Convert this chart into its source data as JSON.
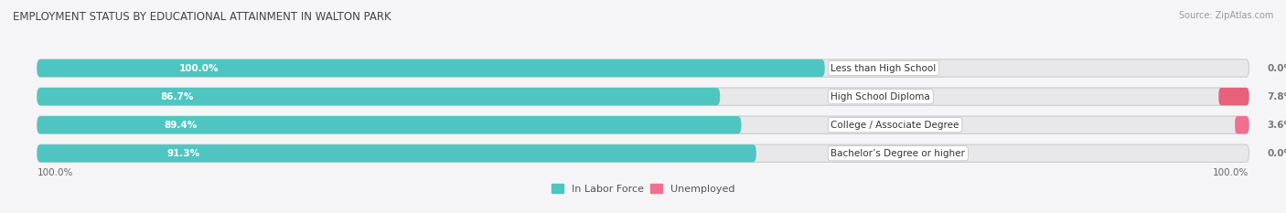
{
  "title": "EMPLOYMENT STATUS BY EDUCATIONAL ATTAINMENT IN WALTON PARK",
  "source": "Source: ZipAtlas.com",
  "categories": [
    "Less than High School",
    "High School Diploma",
    "College / Associate Degree",
    "Bachelor’s Degree or higher"
  ],
  "labor_force_pct": [
    100.0,
    86.7,
    89.4,
    91.3
  ],
  "unemployed_pct": [
    0.0,
    7.8,
    3.6,
    0.0
  ],
  "color_labor": "#4EC5C1",
  "color_unemployed_dark": "#E8607A",
  "color_unemployed_light": "#F4A0B0",
  "color_bg_bar": "#e8e8ea",
  "bar_height": 0.62,
  "figsize": [
    14.06,
    2.33
  ],
  "dpi": 100,
  "x_axis_left_label": "100.0%",
  "x_axis_right_label": "100.0%",
  "legend_labor": "In Labor Force",
  "legend_unemployed": "Unemployed",
  "title_fontsize": 8.5,
  "source_fontsize": 7,
  "bar_label_fontsize": 7.5,
  "category_fontsize": 7.5,
  "axis_label_fontsize": 7.5,
  "background_color": "#f5f5f7"
}
